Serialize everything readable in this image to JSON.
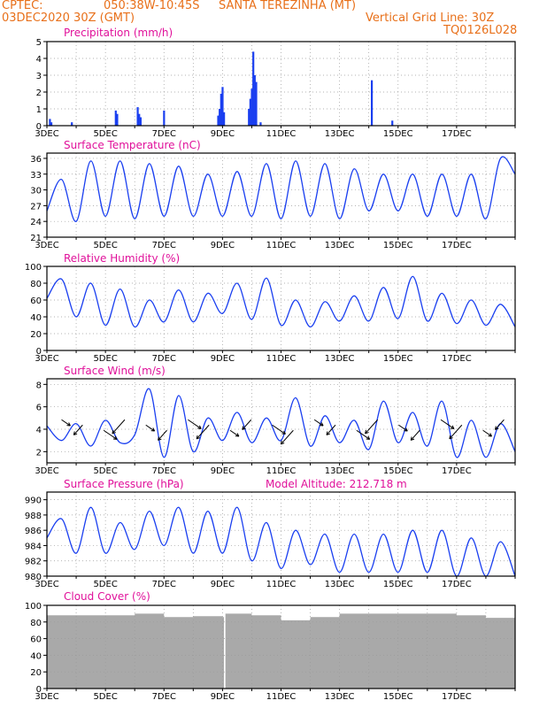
{
  "header": {
    "source": "CPTEC:",
    "coords": "050:38W-10:45S",
    "station": "SANTA TEREZINHA (MT)",
    "run": "03DEC2020 30Z (GMT)",
    "grid_note": "Vertical Grid Line: 30Z",
    "code": "TQ0126L028"
  },
  "colors": {
    "header": "#e8701a",
    "title": "#e0109a",
    "series": "#1a3ff0",
    "cloud": "#a9a9a9",
    "axis": "#000000",
    "grid": "#9a9a9a"
  },
  "x_ticks": [
    "3DEC",
    "5DEC",
    "7DEC",
    "9DEC",
    "11DEC",
    "13DEC",
    "15DEC",
    "17DEC"
  ],
  "panels": {
    "precip": {
      "title": "Precipitation (mm/h)"
    },
    "temp": {
      "title": "Surface Temperature (nC)"
    },
    "rh": {
      "title": "Relative Humidity (%)"
    },
    "wind": {
      "title": "Surface Wind (m/s)"
    },
    "press": {
      "title": "Surface Pressure (hPa)",
      "altitude": "Model Altitude: 212.718 m"
    },
    "cloud": {
      "title": "Cloud Cover (%)"
    }
  },
  "chart_data": [
    {
      "type": "bar",
      "title": "Precipitation (mm/h)",
      "x_unit": "days since 3DEC 00Z",
      "ylim": [
        0,
        5
      ],
      "yticks": [
        0,
        1,
        2,
        3,
        4,
        5
      ],
      "x": [
        0.1,
        0.15,
        0.85,
        2.35,
        2.4,
        3.1,
        3.15,
        3.2,
        4.0,
        5.85,
        5.9,
        5.95,
        6.0,
        6.05,
        6.9,
        6.95,
        7.0,
        7.05,
        7.1,
        7.15,
        7.3,
        11.1,
        11.8
      ],
      "values": [
        0.4,
        0.2,
        0.2,
        0.9,
        0.7,
        1.1,
        0.7,
        0.5,
        0.9,
        0.6,
        1.0,
        1.9,
        2.3,
        0.8,
        1.0,
        1.6,
        2.2,
        4.4,
        3.0,
        2.6,
        0.2,
        2.7,
        0.3
      ]
    },
    {
      "type": "line",
      "title": "Surface Temperature (nC)",
      "ylim": [
        21,
        37
      ],
      "yticks": [
        21,
        24,
        27,
        30,
        33,
        36
      ],
      "x": [
        0,
        0.5,
        1.0,
        1.5,
        2.0,
        2.5,
        3.0,
        3.5,
        4.0,
        4.5,
        5.0,
        5.5,
        6.0,
        6.5,
        7.0,
        7.5,
        8.0,
        8.5,
        9.0,
        9.5,
        10.0,
        10.5,
        11.0,
        11.5,
        12.0,
        12.5,
        13.0,
        13.5,
        14.0,
        14.5,
        15.0,
        15.5,
        16.0
      ],
      "values": [
        26,
        32,
        24,
        35.5,
        25,
        35.5,
        24.5,
        35,
        25,
        34.5,
        25,
        33,
        25,
        33.5,
        25,
        35,
        24.5,
        35.5,
        25,
        35,
        24.5,
        34,
        26,
        33,
        26,
        33,
        25,
        33,
        25,
        33,
        24.5,
        36,
        33
      ]
    },
    {
      "type": "line",
      "title": "Relative Humidity (%)",
      "ylim": [
        0,
        100
      ],
      "yticks": [
        0,
        20,
        40,
        60,
        80,
        100
      ],
      "x": [
        0,
        0.5,
        1.0,
        1.5,
        2.0,
        2.5,
        3.0,
        3.5,
        4.0,
        4.5,
        5.0,
        5.5,
        6.0,
        6.5,
        7.0,
        7.5,
        8.0,
        8.5,
        9.0,
        9.5,
        10.0,
        10.5,
        11.0,
        11.5,
        12.0,
        12.5,
        13.0,
        13.5,
        14.0,
        14.5,
        15.0,
        15.5,
        16.0
      ],
      "values": [
        62,
        85,
        40,
        80,
        30,
        73,
        28,
        60,
        34,
        72,
        34,
        68,
        44,
        80,
        37,
        86,
        30,
        60,
        28,
        58,
        35,
        65,
        35,
        75,
        38,
        88,
        35,
        68,
        32,
        60,
        30,
        55,
        28
      ]
    },
    {
      "type": "line",
      "title": "Surface Wind (m/s)",
      "ylim": [
        1,
        8.5
      ],
      "yticks": [
        2,
        4,
        6,
        8
      ],
      "x": [
        0,
        0.5,
        1.0,
        1.5,
        2.0,
        2.5,
        3.0,
        3.5,
        4.0,
        4.5,
        5.0,
        5.5,
        6.0,
        6.5,
        7.0,
        7.5,
        8.0,
        8.5,
        9.0,
        9.5,
        10.0,
        10.5,
        11.0,
        11.5,
        12.0,
        12.5,
        13.0,
        13.5,
        14.0,
        14.5,
        15.0,
        15.5,
        16.0
      ],
      "values": [
        4.3,
        3.0,
        4.5,
        2.5,
        4.8,
        2.8,
        3.5,
        7.6,
        1.5,
        7.0,
        2.0,
        5.0,
        3.0,
        5.5,
        2.8,
        5.0,
        3.0,
        6.8,
        2.5,
        5.2,
        2.8,
        4.8,
        2.2,
        6.5,
        2.8,
        5.5,
        2.5,
        6.5,
        1.5,
        4.8,
        1.5,
        4.5,
        2.0
      ]
    },
    {
      "type": "line",
      "title": "Surface Pressure (hPa)",
      "ylim": [
        980,
        991
      ],
      "yticks": [
        980,
        982,
        984,
        986,
        988,
        990
      ],
      "x": [
        0,
        0.5,
        1.0,
        1.5,
        2.0,
        2.5,
        3.0,
        3.5,
        4.0,
        4.5,
        5.0,
        5.5,
        6.0,
        6.5,
        7.0,
        7.5,
        8.0,
        8.5,
        9.0,
        9.5,
        10.0,
        10.5,
        11.0,
        11.5,
        12.0,
        12.5,
        13.0,
        13.5,
        14.0,
        14.5,
        15.0,
        15.5,
        16.0
      ],
      "values": [
        985,
        987.5,
        983,
        989,
        983,
        987,
        983.5,
        988.5,
        984,
        989,
        983,
        988.5,
        983,
        989,
        982,
        987,
        981,
        986,
        981.5,
        985.5,
        980.5,
        985.5,
        980.5,
        985.5,
        980.5,
        986,
        980.5,
        986,
        980,
        985,
        980,
        984.5,
        980
      ]
    },
    {
      "type": "area",
      "title": "Cloud Cover (%)",
      "ylim": [
        0,
        100
      ],
      "yticks": [
        0,
        20,
        40,
        60,
        80,
        100
      ],
      "x": [
        0,
        1,
        2,
        3,
        4,
        5,
        6,
        6.05,
        6.1,
        7,
        8,
        9,
        10,
        11,
        12,
        13,
        14,
        15,
        16
      ],
      "values": [
        88,
        88,
        88,
        90,
        86,
        87,
        86,
        0,
        90,
        88,
        82,
        86,
        90,
        90,
        90,
        90,
        88,
        85,
        82
      ]
    }
  ]
}
